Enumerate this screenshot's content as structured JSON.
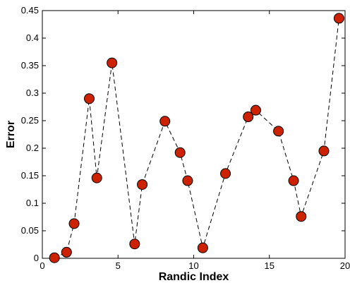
{
  "chart_data": {
    "type": "scatter",
    "title": "",
    "xlabel": "Randic Index",
    "ylabel": "Error",
    "xlim": [
      0,
      20
    ],
    "ylim": [
      0,
      0.45
    ],
    "x_ticks": [
      0,
      5,
      10,
      15,
      20
    ],
    "y_ticks": [
      0,
      0.05,
      0.1,
      0.15,
      0.2,
      0.25,
      0.3,
      0.35,
      0.4,
      0.45
    ],
    "x_tick_labels": [
      "0",
      "5",
      "10",
      "15",
      "20"
    ],
    "y_tick_labels": [
      "0",
      "0.05",
      "0.1",
      "0.15",
      "0.2",
      "0.25",
      "0.3",
      "0.35",
      "0.4",
      "0.45"
    ],
    "grid": false,
    "connect_points": true,
    "line_style": "dashed",
    "marker_color": "#cc2200",
    "line_color": "#000000",
    "series": [
      {
        "x": [
          0.8,
          1.6,
          2.1,
          3.1,
          3.6,
          4.6,
          6.1,
          6.6,
          8.1,
          9.1,
          9.6,
          10.6,
          12.1,
          13.6,
          14.1,
          15.6,
          16.6,
          17.1,
          18.6,
          19.6
        ],
        "y": [
          0.001,
          0.011,
          0.063,
          0.29,
          0.146,
          0.355,
          0.026,
          0.134,
          0.249,
          0.192,
          0.141,
          0.019,
          0.154,
          0.257,
          0.269,
          0.231,
          0.141,
          0.076,
          0.195,
          0.436
        ]
      }
    ]
  }
}
